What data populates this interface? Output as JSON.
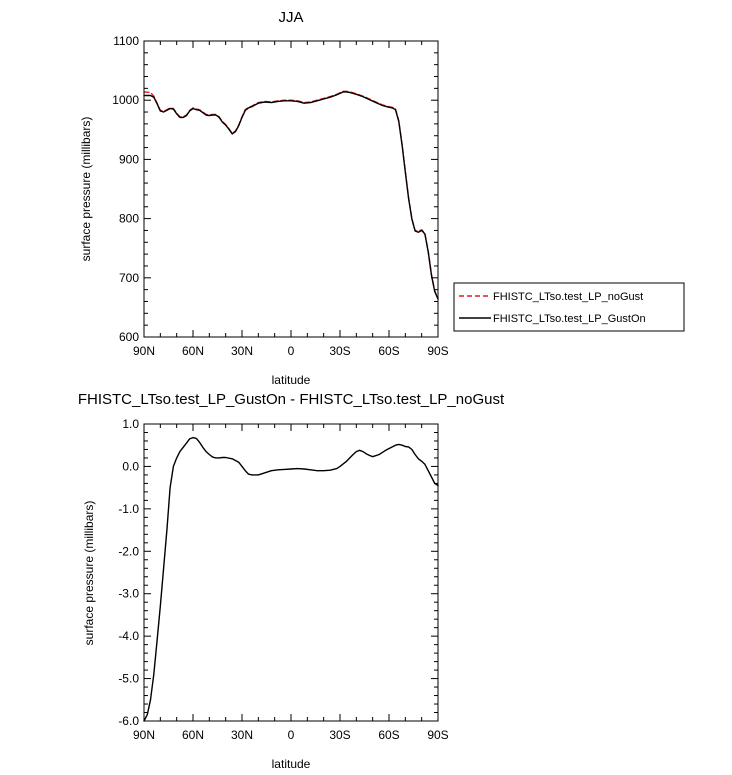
{
  "chart_data": [
    {
      "type": "line",
      "title": "JJA",
      "xlabel": "latitude",
      "ylabel": "surface pressure (millibars)",
      "xlim": [
        90,
        -90
      ],
      "ylim": [
        600,
        1100
      ],
      "x_ticks": [
        {
          "value": 90,
          "label": "90N"
        },
        {
          "value": 60,
          "label": "60N"
        },
        {
          "value": 30,
          "label": "30N"
        },
        {
          "value": 0,
          "label": "0"
        },
        {
          "value": -30,
          "label": "30S"
        },
        {
          "value": -60,
          "label": "60S"
        },
        {
          "value": -90,
          "label": "90S"
        }
      ],
      "y_ticks": [
        {
          "value": 600,
          "label": "600"
        },
        {
          "value": 700,
          "label": "700"
        },
        {
          "value": 800,
          "label": "800"
        },
        {
          "value": 900,
          "label": "900"
        },
        {
          "value": 1000,
          "label": "1000"
        },
        {
          "value": 1100,
          "label": "1100"
        }
      ],
      "legend": "right",
      "series": [
        {
          "name": "FHISTC_LTso.test_LP_noGust",
          "color": "#e41a1c",
          "dash": true,
          "x": [
            90,
            86,
            84,
            82,
            80,
            78,
            76,
            74,
            72,
            70,
            68,
            66,
            64,
            62,
            60,
            58,
            56,
            54,
            52,
            50,
            48,
            46,
            44,
            42,
            40,
            38,
            36,
            34,
            32,
            30,
            28,
            26,
            24,
            22,
            20,
            16,
            12,
            8,
            4,
            0,
            -4,
            -8,
            -12,
            -16,
            -20,
            -24,
            -28,
            -32,
            -34,
            -36,
            -40,
            -44,
            -48,
            -52,
            -56,
            -60,
            -62,
            -64,
            -66,
            -68,
            -70,
            -72,
            -74,
            -76,
            -78,
            -80,
            -82,
            -84,
            -86,
            -88,
            -90
          ],
          "y": [
            1014,
            1013,
            1007,
            995,
            983,
            981,
            984,
            987,
            986,
            978,
            972,
            972,
            975,
            983,
            987,
            985,
            984,
            980,
            976,
            975,
            976,
            976,
            972,
            964,
            959,
            952,
            944,
            948,
            958,
            972,
            984,
            988,
            990,
            993,
            996,
            998,
            997,
            999,
            1000,
            1000,
            999,
            996,
            997,
            1000,
            1003,
            1006,
            1010,
            1015,
            1015,
            1014,
            1011,
            1007,
            1002,
            997,
            992,
            989,
            988,
            985,
            965,
            925,
            880,
            835,
            800,
            780,
            778,
            781,
            775,
            745,
            705,
            678,
            665
          ]
        },
        {
          "name": "FHISTC_LTso.test_LP_GustOn",
          "color": "#000000",
          "dash": false,
          "x": [
            90,
            86,
            84,
            82,
            80,
            78,
            76,
            74,
            72,
            70,
            68,
            66,
            64,
            62,
            60,
            58,
            56,
            54,
            52,
            50,
            48,
            46,
            44,
            42,
            40,
            38,
            36,
            34,
            32,
            30,
            28,
            26,
            24,
            22,
            20,
            16,
            12,
            8,
            4,
            0,
            -4,
            -8,
            -12,
            -16,
            -20,
            -24,
            -28,
            -32,
            -34,
            -36,
            -40,
            -44,
            -48,
            -52,
            -56,
            -60,
            -62,
            -64,
            -66,
            -68,
            -70,
            -72,
            -74,
            -76,
            -78,
            -80,
            -82,
            -84,
            -86,
            -88,
            -90
          ],
          "y": [
            1008,
            1008,
            1005,
            994,
            982,
            980,
            983,
            986,
            985,
            977,
            971,
            971,
            974,
            982,
            986,
            984,
            983,
            979,
            975,
            974,
            975,
            975,
            971,
            963,
            958,
            951,
            943,
            947,
            957,
            971,
            983,
            987,
            989,
            992,
            995,
            997,
            996,
            998,
            999,
            999,
            998,
            995,
            996,
            999,
            1002,
            1005,
            1009,
            1014,
            1014,
            1013,
            1010,
            1006,
            1001,
            996,
            991,
            988,
            987,
            984,
            964,
            924,
            879,
            834,
            799,
            779,
            777,
            780,
            774,
            744,
            704,
            677,
            664
          ]
        }
      ]
    },
    {
      "type": "line",
      "title": "FHISTC_LTso.test_LP_GustOn - FHISTC_LTso.test_LP_noGust",
      "xlabel": "latitude",
      "ylabel": "surface pressure (millibars)",
      "xlim": [
        90,
        -90
      ],
      "ylim": [
        -6.0,
        1.0
      ],
      "x_ticks": [
        {
          "value": 90,
          "label": "90N"
        },
        {
          "value": 60,
          "label": "60N"
        },
        {
          "value": 30,
          "label": "30N"
        },
        {
          "value": 0,
          "label": "0"
        },
        {
          "value": -30,
          "label": "30S"
        },
        {
          "value": -60,
          "label": "60S"
        },
        {
          "value": -90,
          "label": "90S"
        }
      ],
      "y_ticks": [
        {
          "value": -6.0,
          "label": "-6.0"
        },
        {
          "value": -5.0,
          "label": "-5.0"
        },
        {
          "value": -4.0,
          "label": "-4.0"
        },
        {
          "value": -3.0,
          "label": "-3.0"
        },
        {
          "value": -2.0,
          "label": "-2.0"
        },
        {
          "value": -1.0,
          "label": "-1.0"
        },
        {
          "value": 0.0,
          "label": "0.0"
        },
        {
          "value": 1.0,
          "label": "1.0"
        }
      ],
      "series": [
        {
          "color": "#000000",
          "dash": false,
          "x": [
            90,
            88,
            86,
            84,
            82,
            80,
            78,
            76,
            74,
            72,
            70,
            68,
            66,
            64,
            62,
            60,
            58,
            56,
            54,
            52,
            50,
            48,
            46,
            44,
            42,
            40,
            36,
            32,
            30,
            28,
            26,
            24,
            20,
            16,
            12,
            8,
            4,
            0,
            -4,
            -8,
            -12,
            -16,
            -20,
            -24,
            -28,
            -30,
            -34,
            -38,
            -40,
            -42,
            -44,
            -46,
            -48,
            -50,
            -54,
            -58,
            -62,
            -64,
            -66,
            -68,
            -70,
            -72,
            -74,
            -76,
            -78,
            -80,
            -82,
            -84,
            -86,
            -88,
            -90
          ],
          "y": [
            -6.0,
            -5.85,
            -5.5,
            -4.9,
            -4.1,
            -3.3,
            -2.4,
            -1.5,
            -0.5,
            0.0,
            0.2,
            0.35,
            0.45,
            0.55,
            0.65,
            0.68,
            0.66,
            0.57,
            0.45,
            0.35,
            0.28,
            0.22,
            0.2,
            0.2,
            0.21,
            0.21,
            0.18,
            0.1,
            0.0,
            -0.1,
            -0.18,
            -0.2,
            -0.2,
            -0.15,
            -0.1,
            -0.08,
            -0.07,
            -0.06,
            -0.05,
            -0.06,
            -0.08,
            -0.1,
            -0.1,
            -0.09,
            -0.05,
            0.0,
            0.12,
            0.28,
            0.35,
            0.38,
            0.35,
            0.3,
            0.26,
            0.23,
            0.28,
            0.38,
            0.46,
            0.5,
            0.52,
            0.5,
            0.47,
            0.46,
            0.4,
            0.28,
            0.18,
            0.12,
            0.05,
            -0.1,
            -0.25,
            -0.4,
            -0.45
          ]
        }
      ]
    }
  ]
}
